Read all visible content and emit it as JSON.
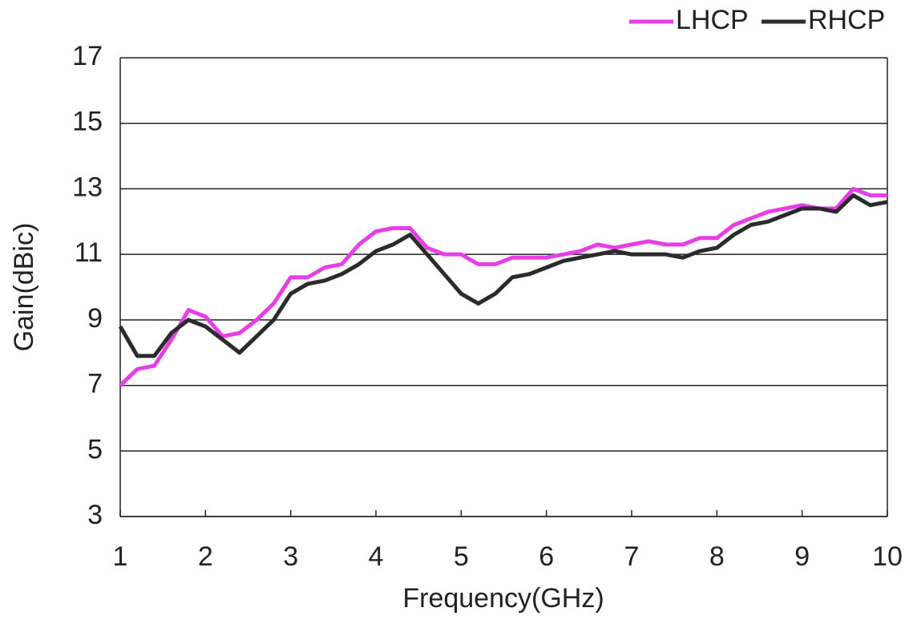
{
  "chart_data": {
    "type": "line",
    "x_label": "Frequency(GHz)",
    "y_label": "Gain(dBic)",
    "x": [
      1.0,
      1.2,
      1.4,
      1.6,
      1.8,
      2.0,
      2.2,
      2.4,
      2.6,
      2.8,
      3.0,
      3.2,
      3.4,
      3.6,
      3.8,
      4.0,
      4.2,
      4.4,
      4.6,
      4.8,
      5.0,
      5.2,
      5.4,
      5.6,
      5.8,
      6.0,
      6.2,
      6.4,
      6.6,
      6.8,
      7.0,
      7.2,
      7.4,
      7.6,
      7.8,
      8.0,
      8.2,
      8.4,
      8.6,
      8.8,
      9.0,
      9.2,
      9.4,
      9.6,
      9.8,
      10.0
    ],
    "series": [
      {
        "name": "LHCP",
        "color": "#e83ee8",
        "values": [
          7.0,
          7.5,
          7.6,
          8.4,
          9.3,
          9.1,
          8.5,
          8.6,
          9.0,
          9.5,
          10.3,
          10.3,
          10.6,
          10.7,
          11.3,
          11.7,
          11.8,
          11.8,
          11.2,
          11.0,
          11.0,
          10.7,
          10.7,
          10.9,
          10.9,
          10.9,
          11.0,
          11.1,
          11.3,
          11.2,
          11.3,
          11.4,
          11.3,
          11.3,
          11.5,
          11.5,
          11.9,
          12.1,
          12.3,
          12.4,
          12.5,
          12.4,
          12.4,
          13.0,
          12.8,
          12.8
        ]
      },
      {
        "name": "RHCP",
        "color": "#2b2b2b",
        "values": [
          8.8,
          7.9,
          7.9,
          8.6,
          9.0,
          8.8,
          8.4,
          8.0,
          8.5,
          9.0,
          9.8,
          10.1,
          10.2,
          10.4,
          10.7,
          11.1,
          11.3,
          11.6,
          11.0,
          10.4,
          9.8,
          9.5,
          9.8,
          10.3,
          10.4,
          10.6,
          10.8,
          10.9,
          11.0,
          11.1,
          11.0,
          11.0,
          11.0,
          10.9,
          11.1,
          11.2,
          11.6,
          11.9,
          12.0,
          12.2,
          12.4,
          12.4,
          12.3,
          12.8,
          12.5,
          12.6
        ]
      }
    ],
    "xlim": [
      1,
      10
    ],
    "xticks": [
      1,
      2,
      3,
      4,
      5,
      6,
      7,
      8,
      9,
      10
    ],
    "ylim": [
      3,
      17
    ],
    "yticks": [
      3,
      5,
      7,
      9,
      11,
      13,
      15,
      17
    ],
    "grid": true,
    "legend": "top-right"
  }
}
